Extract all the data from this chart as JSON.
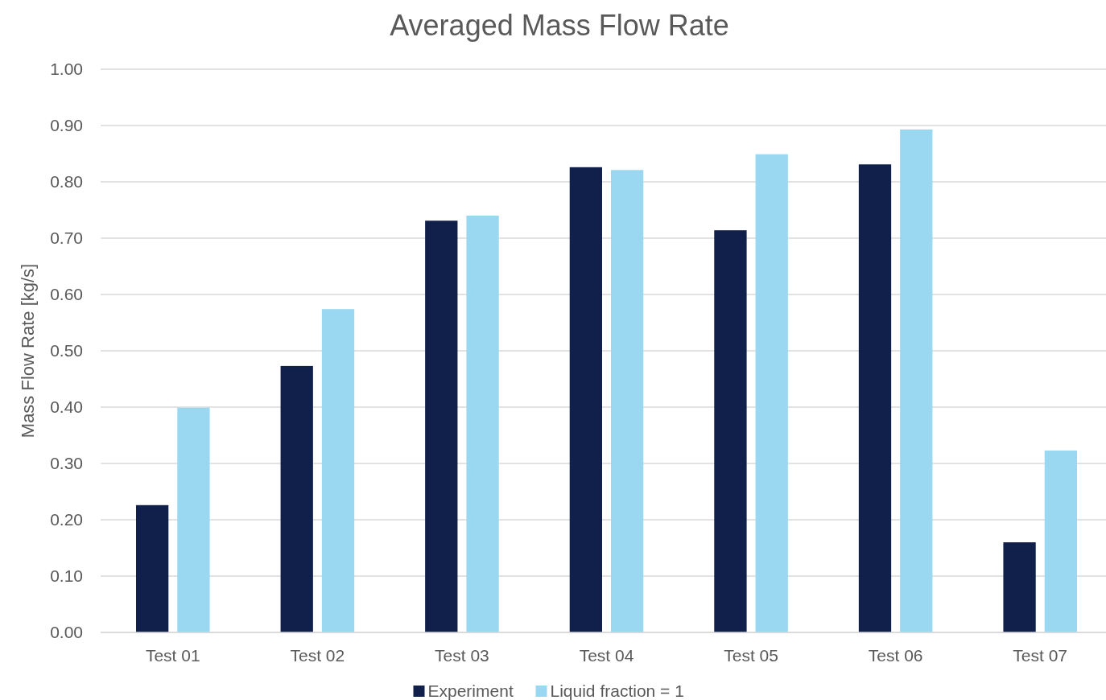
{
  "chart_data": {
    "type": "bar",
    "title": "Averaged Mass Flow Rate",
    "ylabel": "Mass Flow Rate [kg/s]",
    "categories": [
      "Test 01",
      "Test 02",
      "Test 03",
      "Test 04",
      "Test 05",
      "Test 06",
      "Test 07"
    ],
    "series": [
      {
        "name": "Experiment",
        "color": "#10204b",
        "values": [
          0.226,
          0.473,
          0.731,
          0.826,
          0.714,
          0.831,
          0.16
        ]
      },
      {
        "name": "Liquid fraction = 1",
        "color": "#99d8f0",
        "values": [
          0.399,
          0.574,
          0.74,
          0.821,
          0.849,
          0.893,
          0.323
        ]
      }
    ],
    "ylim": [
      0,
      1
    ],
    "yticks": [
      {
        "value": 0,
        "label": "0.00"
      },
      {
        "value": 0.1,
        "label": "0.10"
      },
      {
        "value": 0.2,
        "label": "0.20"
      },
      {
        "value": 0.3,
        "label": "0.30"
      },
      {
        "value": 0.4,
        "label": "0.40"
      },
      {
        "value": 0.5,
        "label": "0.50"
      },
      {
        "value": 0.6,
        "label": "0.60"
      },
      {
        "value": 0.7,
        "label": "0.70"
      },
      {
        "value": 0.8,
        "label": "0.80"
      },
      {
        "value": 0.9,
        "label": "0.90"
      },
      {
        "value": 1,
        "label": "1.00"
      }
    ],
    "grid": "y",
    "legend": "bottom"
  }
}
